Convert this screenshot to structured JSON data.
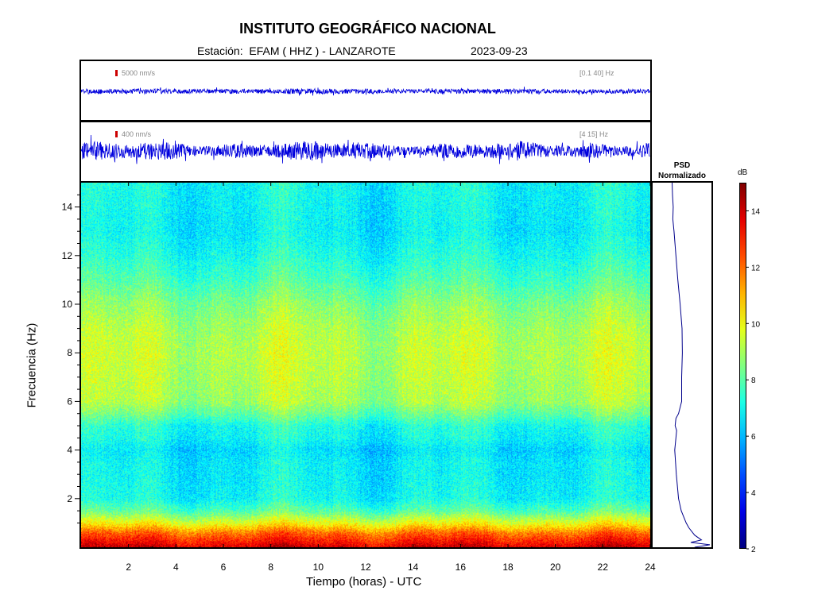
{
  "header": {
    "title": "INSTITUTO GEOGRÁFICO NACIONAL",
    "subtitle": "Estación:  EFAM ( HHZ ) - LANZAROTE",
    "date": "2023-09-23"
  },
  "traces": [
    {
      "scale_label": "5000 nm/s",
      "band_label": "[0.1 40] Hz",
      "band_color": "#0000dd"
    },
    {
      "scale_label": "400 nm/s",
      "band_label": "[4 15] Hz",
      "band_color": "#0000dd"
    }
  ],
  "psd": {
    "title_line1": "PSD",
    "title_line2": "Normalizado"
  },
  "colors": {
    "trace": "#0000dd",
    "scale_bar": "#cc0000",
    "psd_line": "#00008b"
  },
  "chart_data": {
    "type": "heatmap",
    "title": "INSTITUTO GEOGRÁFICO NACIONAL",
    "xlabel": "Tiempo (horas) - UTC",
    "ylabel": "Frecuencia  (Hz)",
    "xlim": [
      0,
      24
    ],
    "ylim": [
      0,
      15
    ],
    "x_ticks": [
      "2",
      "4",
      "6",
      "8",
      "10",
      "12",
      "14",
      "16",
      "18",
      "20",
      "22",
      "24"
    ],
    "y_ticks": [
      "2",
      "4",
      "6",
      "8",
      "10",
      "12",
      "14"
    ],
    "colorbar": {
      "label": "dB",
      "range": [
        2,
        15
      ],
      "ticks": [
        "2",
        "4",
        "6",
        "8",
        "10",
        "12",
        "14"
      ],
      "colormap": "jet"
    },
    "spectrum_profile": {
      "frequency_hz": [
        0.0,
        0.3,
        0.6,
        1.0,
        1.5,
        2.0,
        3.0,
        3.5,
        4.0,
        4.5,
        5.0,
        5.5,
        6.0,
        7.0,
        8.0,
        9.0,
        10.0,
        11.0,
        12.0,
        13.0,
        14.0,
        15.0
      ],
      "level_db": [
        14.0,
        13.0,
        12.0,
        10.0,
        8.0,
        7.0,
        6.8,
        6.8,
        6.5,
        7.0,
        7.2,
        8.2,
        9.0,
        9.2,
        9.3,
        9.1,
        8.6,
        7.8,
        7.2,
        6.8,
        6.9,
        7.0
      ]
    },
    "psd_normalized": {
      "frequency_hz": [
        0.0,
        0.1,
        0.2,
        0.3,
        0.5,
        0.8,
        1.0,
        1.5,
        2.0,
        3.0,
        3.5,
        4.0,
        4.5,
        4.8,
        5.0,
        5.3,
        5.5,
        6.0,
        7.0,
        8.0,
        9.0,
        10.0,
        11.0,
        12.0,
        13.0,
        13.5,
        14.0,
        14.5,
        15.0
      ],
      "value": [
        0.6,
        1.0,
        0.5,
        0.78,
        0.6,
        0.45,
        0.38,
        0.25,
        0.18,
        0.12,
        0.1,
        0.08,
        0.11,
        0.13,
        0.09,
        0.11,
        0.18,
        0.26,
        0.26,
        0.28,
        0.27,
        0.22,
        0.16,
        0.11,
        0.06,
        0.03,
        0.04,
        0.02,
        0.01
      ]
    }
  }
}
